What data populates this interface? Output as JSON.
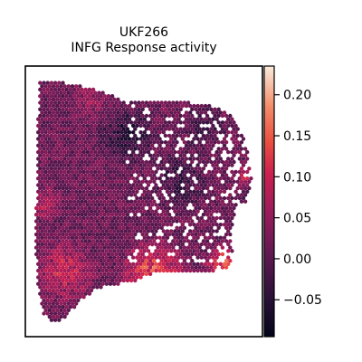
{
  "chart_data": {
    "type": "spatial-scatter",
    "title_line1": "UKF266",
    "title_line2": "INFG Response activity",
    "xlabel": "",
    "ylabel": "",
    "colorbar": {
      "cmap": "rocket",
      "vmin": -0.095,
      "vmax": 0.235,
      "ticks": [
        -0.05,
        0.0,
        0.05,
        0.1,
        0.15,
        0.2
      ],
      "tick_labels": [
        "−0.05",
        "0.00",
        "0.05",
        "0.10",
        "0.15",
        "0.20"
      ]
    },
    "colors": {
      "frame": "#000000",
      "background": "#ffffff"
    },
    "tissue": {
      "description_values": "hexagonal spot grid, mostly near 0.00-0.05, dark cluster (~-0.05) at upper centre, high values (~0.10-0.20) at lower-left and bottom-centre edge",
      "hotspots": [
        {
          "region": "lower-left",
          "value": 0.12
        },
        {
          "region": "bottom-centre",
          "value": 0.19
        },
        {
          "region": "left-middle",
          "value": 0.09
        },
        {
          "region": "right-edge",
          "value": 0.1
        }
      ],
      "coldspots": [
        {
          "region": "upper-centre",
          "value": -0.06
        },
        {
          "region": "centre",
          "value": -0.04
        }
      ]
    }
  }
}
